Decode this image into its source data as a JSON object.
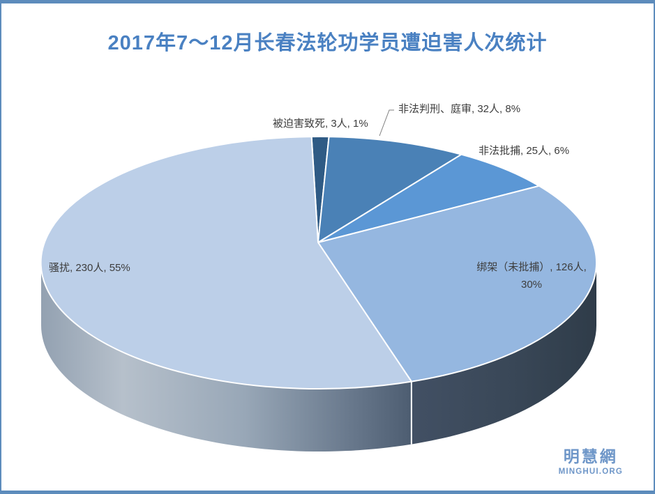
{
  "page": {
    "background": "#ffffff",
    "frame_color": "#5d8cbc"
  },
  "chart_data": {
    "type": "pie",
    "style": "3d-pie",
    "legend": "none",
    "title": "2017年7～12月长春法轮功学员遭迫害人次统计",
    "title_color": "#4a81c2",
    "label_color": "#3d3d3d",
    "unit": "人",
    "slices": [
      {
        "name": "被迫害致死",
        "count": 3,
        "percent": 1,
        "color": "#2f5b85",
        "callout": "被迫害致死, 3人, 1%"
      },
      {
        "name": "非法判刑、庭审",
        "count": 32,
        "percent": 8,
        "color": "#4a81b6",
        "callout": "非法判刑、庭审, 32人, 8%"
      },
      {
        "name": "非法批捕",
        "count": 25,
        "percent": 6,
        "color": "#5b97d5",
        "callout": "非法批捕, 25人, 6%"
      },
      {
        "name": "绑架（未批捕）",
        "count": 126,
        "percent": 30,
        "color": "#95b7e0",
        "callout_line1": "绑架（未批捕）, 126人,",
        "callout_line2": "30%"
      },
      {
        "name": "骚扰",
        "count": 230,
        "percent": 55,
        "color": "#bccfe8",
        "callout": "骚扰, 230人, 55%"
      }
    ]
  },
  "watermark": {
    "cjk": "明慧網",
    "latin": "MINGHUI.ORG",
    "color": "#6e96c8"
  }
}
